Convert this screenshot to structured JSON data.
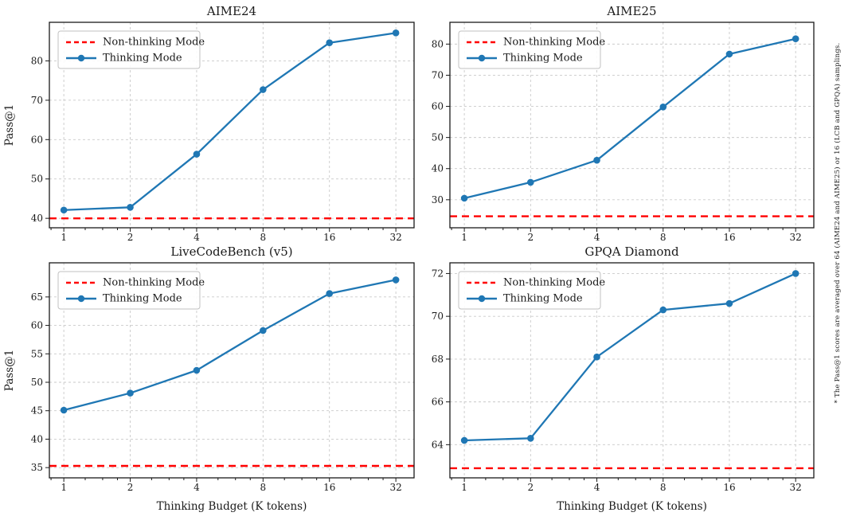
{
  "figure": {
    "side_note": "* The Pass@1 scores are averaged over 64 (AIME24 and AIME25) or 16 (LCB and GPQA) samplings.",
    "legend": {
      "non_thinking_label": "Non-thinking Mode",
      "thinking_label": "Thinking Mode"
    },
    "colors": {
      "thinking_line": "#1f77b4",
      "non_thinking_line": "#ff0000",
      "grid": "#c9c9c9",
      "axis": "#1a1a1a",
      "legend_border": "#c0c0c0",
      "background": "#ffffff"
    }
  },
  "chart_data": [
    {
      "id": "aime24",
      "type": "line",
      "title": "AIME24",
      "xlabel": "",
      "ylabel": "Pass@1",
      "xscale": "log2",
      "x": [
        1,
        2,
        4,
        8,
        16,
        32
      ],
      "xticklabels": [
        "1",
        "2",
        "4",
        "8",
        "16",
        "32"
      ],
      "series": [
        {
          "name": "Thinking Mode",
          "values": [
            42.1,
            42.8,
            56.3,
            72.7,
            84.6,
            87.1
          ]
        }
      ],
      "baseline": {
        "name": "Non-thinking Mode",
        "value": 40.0
      },
      "yticks": [
        40,
        50,
        60,
        70,
        80
      ],
      "ylim": [
        37.6,
        89.8
      ],
      "xlim": [
        0.86,
        38.7
      ],
      "grid": true,
      "legend_position": "upper-left"
    },
    {
      "id": "aime25",
      "type": "line",
      "title": "AIME25",
      "xlabel": "",
      "ylabel": "",
      "xscale": "log2",
      "x": [
        1,
        2,
        4,
        8,
        16,
        32
      ],
      "xticklabels": [
        "1",
        "2",
        "4",
        "8",
        "16",
        "32"
      ],
      "series": [
        {
          "name": "Thinking Mode",
          "values": [
            30.5,
            35.6,
            42.7,
            59.8,
            76.8,
            81.7
          ]
        }
      ],
      "baseline": {
        "name": "Non-thinking Mode",
        "value": 24.7
      },
      "yticks": [
        30,
        40,
        50,
        60,
        70,
        80
      ],
      "ylim": [
        21.0,
        87.0
      ],
      "xlim": [
        0.86,
        38.7
      ],
      "grid": true,
      "legend_position": "upper-left"
    },
    {
      "id": "livecodebench-v5",
      "type": "line",
      "title": "LiveCodeBench (v5)",
      "xlabel": "Thinking Budget (K tokens)",
      "ylabel": "Pass@1",
      "xscale": "log2",
      "x": [
        1,
        2,
        4,
        8,
        16,
        32
      ],
      "xticklabels": [
        "1",
        "2",
        "4",
        "8",
        "16",
        "32"
      ],
      "series": [
        {
          "name": "Thinking Mode",
          "values": [
            45.1,
            48.1,
            52.1,
            59.1,
            65.6,
            68.0
          ]
        }
      ],
      "baseline": {
        "name": "Non-thinking Mode",
        "value": 35.3
      },
      "yticks": [
        35,
        40,
        45,
        50,
        55,
        60,
        65
      ],
      "ylim": [
        33.2,
        71.0
      ],
      "xlim": [
        0.86,
        38.7
      ],
      "grid": true,
      "legend_position": "upper-left"
    },
    {
      "id": "gpqa-diamond",
      "type": "line",
      "title": "GPQA Diamond",
      "xlabel": "Thinking Budget (K tokens)",
      "ylabel": "",
      "xscale": "log2",
      "x": [
        1,
        2,
        4,
        8,
        16,
        32
      ],
      "xticklabels": [
        "1",
        "2",
        "4",
        "8",
        "16",
        "32"
      ],
      "series": [
        {
          "name": "Thinking Mode",
          "values": [
            64.2,
            64.3,
            68.1,
            70.3,
            70.6,
            72.0
          ]
        }
      ],
      "baseline": {
        "name": "Non-thinking Mode",
        "value": 62.9
      },
      "yticks": [
        64,
        66,
        68,
        70,
        72
      ],
      "ylim": [
        62.45,
        72.5
      ],
      "xlim": [
        0.86,
        38.7
      ],
      "grid": true,
      "legend_position": "upper-left"
    }
  ]
}
